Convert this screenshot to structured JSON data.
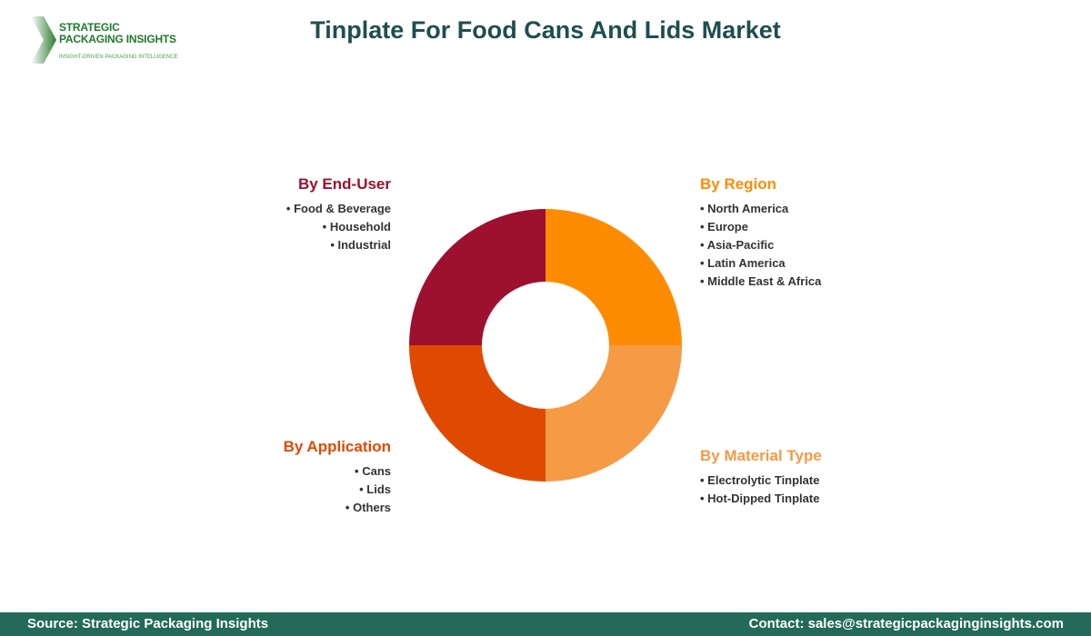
{
  "logo": {
    "name_line1": "STRATEGIC",
    "name_line2": "PACKAGING INSIGHTS",
    "tagline": "INSIGHT-DRIVEN PACKAGING INTELLIGENCE"
  },
  "title": "Tinplate For Food Cans And Lids Market",
  "segments": [
    {
      "title": "By Region",
      "color": "#FF8C00",
      "items": [
        "North America",
        "Europe",
        "Asia-Pacific",
        "Latin America",
        "Middle East & Africa"
      ]
    },
    {
      "title": "By Material Type",
      "color": "#F59A45",
      "items": [
        "Electrolytic Tinplate",
        "Hot-Dipped Tinplate"
      ]
    },
    {
      "title": "By Application",
      "color": "#E04A00",
      "items": [
        "Cans",
        "Lids",
        "Others"
      ]
    },
    {
      "title": "By End-User",
      "color": "#9E1030",
      "items": [
        "Food & Beverage",
        "Household",
        "Industrial"
      ]
    }
  ],
  "footer": {
    "source": "Source: Strategic Packaging Insights",
    "contact": "Contact: sales@strategicpackaginginsights.com"
  }
}
